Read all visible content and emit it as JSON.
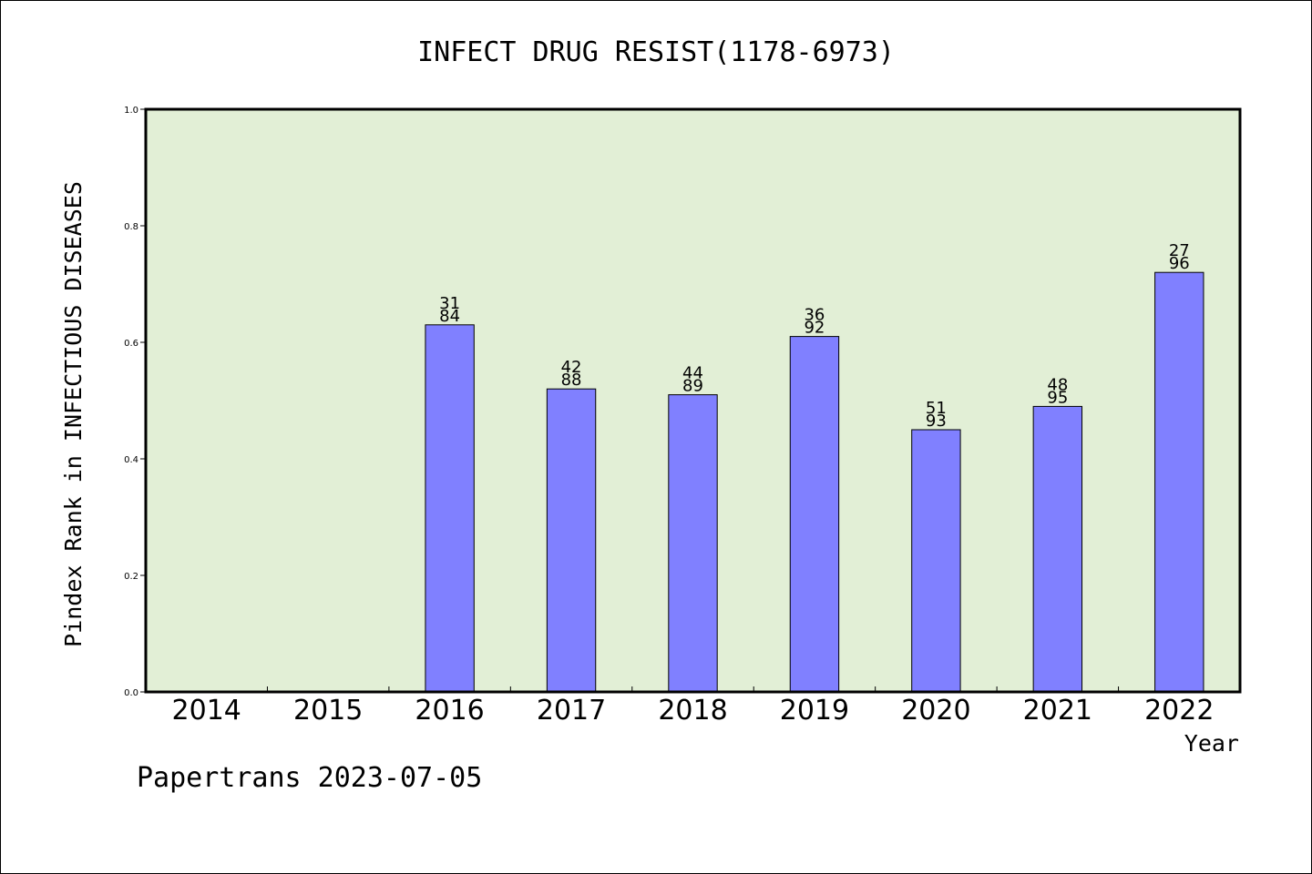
{
  "chart_data": {
    "type": "bar",
    "title": "INFECT DRUG RESIST(1178-6973)",
    "xlabel": "Year",
    "ylabel": "Pindex Rank in INFECTIOUS DISEASES",
    "credit": "Papertrans 2023-07-05",
    "categories": [
      "2014",
      "2015",
      "2016",
      "2017",
      "2018",
      "2019",
      "2020",
      "2021",
      "2022"
    ],
    "values": [
      null,
      null,
      0.63,
      0.52,
      0.51,
      0.61,
      0.45,
      0.49,
      0.72
    ],
    "label_top": [
      "",
      "",
      "31",
      "42",
      "44",
      "36",
      "51",
      "48",
      "27"
    ],
    "label_bottom": [
      "",
      "",
      "84",
      "88",
      "89",
      "92",
      "93",
      "95",
      "96"
    ],
    "ylim": [
      0,
      1.0
    ],
    "yticks": [
      "0.0",
      "0.2",
      "0.4",
      "0.6",
      "0.8",
      "1.0"
    ],
    "grid": false,
    "colors": {
      "plot_bg": "#e2efd6",
      "bar": "#8080ff",
      "bar_edge": "#000000"
    }
  }
}
